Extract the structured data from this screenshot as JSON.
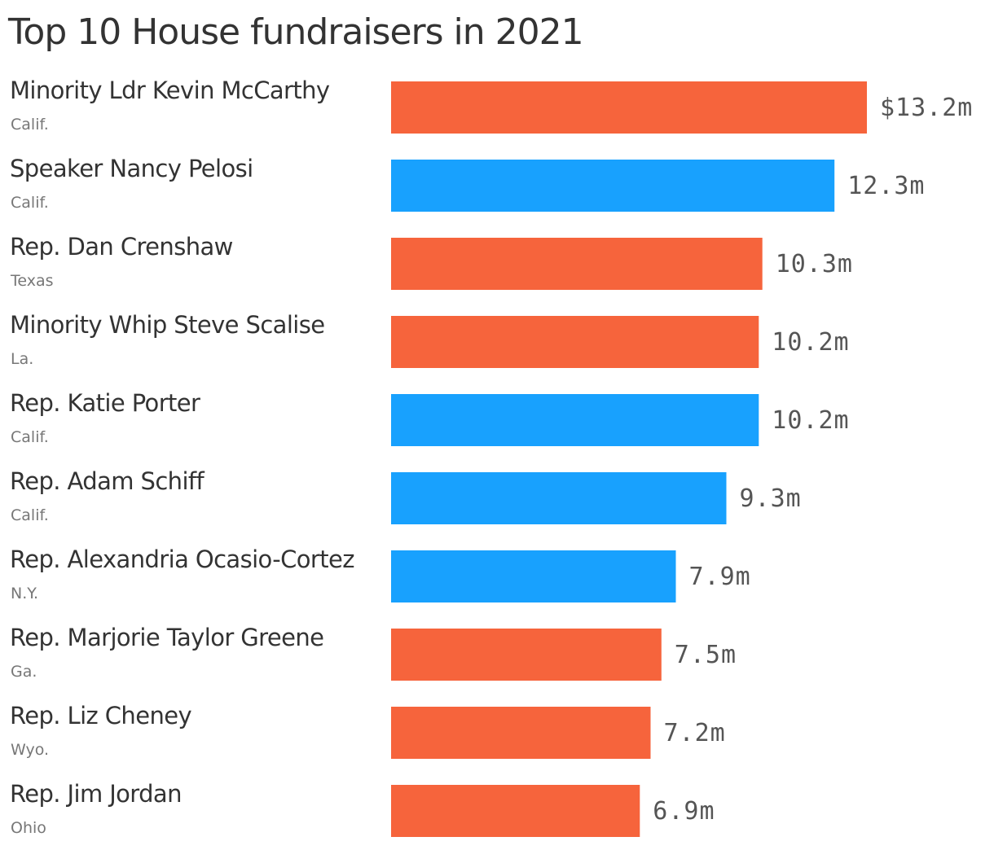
{
  "chart_data": {
    "type": "bar",
    "orientation": "horizontal",
    "title": "Top 10 House fundraisers in 2021",
    "unit": "m",
    "value_prefix_first": "$",
    "party_colors": {
      "republican": "#f6643c",
      "democrat": "#18a1fe"
    },
    "xlim": [
      0,
      13.2
    ],
    "grid": false,
    "legend": "none",
    "rows": [
      {
        "name": "Minority Ldr Kevin McCarthy",
        "state": "Calif.",
        "value": 13.2,
        "party": "republican",
        "label": "$13.2m"
      },
      {
        "name": "Speaker Nancy Pelosi",
        "state": "Calif.",
        "value": 12.3,
        "party": "democrat",
        "label": "12.3m"
      },
      {
        "name": "Rep. Dan Crenshaw",
        "state": "Texas",
        "value": 10.3,
        "party": "republican",
        "label": "10.3m"
      },
      {
        "name": "Minority Whip Steve Scalise",
        "state": "La.",
        "value": 10.2,
        "party": "republican",
        "label": "10.2m"
      },
      {
        "name": "Rep. Katie Porter",
        "state": "Calif.",
        "value": 10.2,
        "party": "democrat",
        "label": "10.2m"
      },
      {
        "name": "Rep. Adam Schiff",
        "state": "Calif.",
        "value": 9.3,
        "party": "democrat",
        "label": "9.3m"
      },
      {
        "name": "Rep. Alexandria Ocasio-Cortez",
        "state": "N.Y.",
        "value": 7.9,
        "party": "democrat",
        "label": "7.9m"
      },
      {
        "name": "Rep. Marjorie Taylor Greene",
        "state": "Ga.",
        "value": 7.5,
        "party": "republican",
        "label": "7.5m"
      },
      {
        "name": "Rep. Liz Cheney",
        "state": "Wyo.",
        "value": 7.2,
        "party": "republican",
        "label": "7.2m"
      },
      {
        "name": "Rep. Jim Jordan",
        "state": "Ohio",
        "value": 6.9,
        "party": "republican",
        "label": "6.9m"
      }
    ]
  }
}
